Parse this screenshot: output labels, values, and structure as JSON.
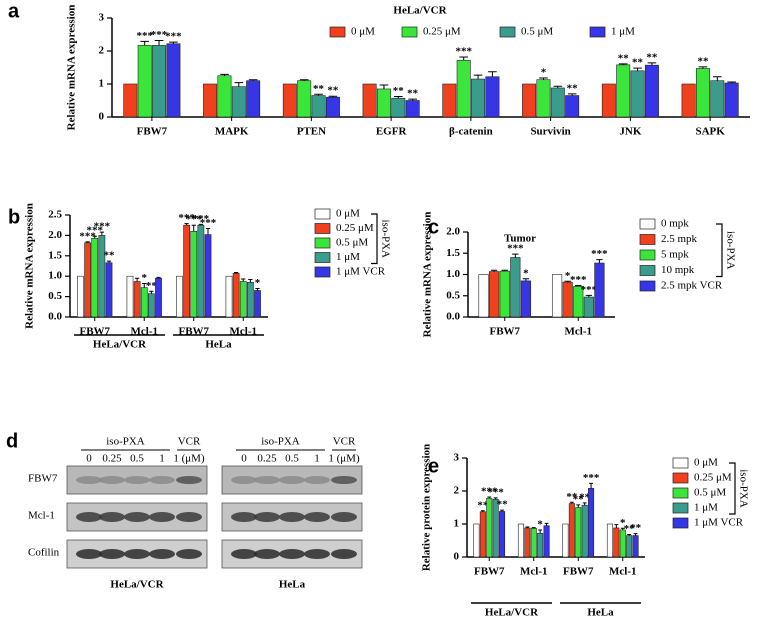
{
  "chart_data": [
    {
      "type": "bar",
      "panel": "a",
      "title": "HeLa/VCR",
      "y_label": "Relative mRNA expression",
      "categories": [
        "FBW7",
        "MAPK",
        "PTEN",
        "EGFR",
        "β-catenin",
        "Survivin",
        "JNK",
        "SAPK"
      ],
      "ylim": [
        0,
        3
      ],
      "yticks": [
        0,
        1,
        2,
        3
      ],
      "legend": "top",
      "series": [
        {
          "name": "0 μM",
          "color": "#f0401e",
          "values": [
            1,
            1,
            1,
            1,
            1,
            1,
            1,
            1
          ],
          "errors": [
            0,
            0,
            0,
            0,
            0,
            0,
            0,
            0
          ],
          "significance": [
            null,
            null,
            null,
            null,
            null,
            null,
            null,
            null
          ]
        },
        {
          "name": "0.25 μM",
          "color": "#3be63b",
          "values": [
            2.17,
            1.25,
            1.1,
            0.85,
            1.72,
            1.13,
            1.58,
            1.47
          ],
          "errors": [
            0.12,
            0.04,
            0.03,
            0.12,
            0.1,
            0.05,
            0.03,
            0.05
          ],
          "significance": [
            "***",
            null,
            null,
            null,
            "***",
            "*",
            "**",
            "**"
          ]
        },
        {
          "name": "0.5 μM",
          "color": "#3a9c8c",
          "values": [
            2.17,
            0.92,
            0.65,
            0.57,
            1.15,
            0.88,
            1.4,
            1.1
          ],
          "errors": [
            0.15,
            0.12,
            0.04,
            0.05,
            0.12,
            0.05,
            0.08,
            0.12
          ],
          "significance": [
            "***",
            null,
            "**",
            "**",
            null,
            null,
            "**",
            null
          ]
        },
        {
          "name": "1 μM",
          "color": "#3636e6",
          "values": [
            2.22,
            1.1,
            0.6,
            0.5,
            1.22,
            0.65,
            1.57,
            1.03
          ],
          "errors": [
            0.05,
            0.03,
            0.03,
            0.04,
            0.15,
            0.05,
            0.07,
            0.03
          ],
          "significance": [
            "***",
            null,
            "**",
            "**",
            null,
            "**",
            "**",
            null
          ]
        }
      ]
    },
    {
      "type": "bar",
      "panel": "b",
      "y_label": "Relative mRNA expression",
      "categories": [
        "FBW7",
        "Mcl-1",
        "FBW7",
        "Mcl-1"
      ],
      "group_labels": [
        "HeLa/VCR",
        "HeLa"
      ],
      "ylim": [
        0,
        2.5
      ],
      "yticks": [
        {
          "value": 0,
          "label": "0.0"
        },
        0.5,
        {
          "value": 1,
          "label": "1.0"
        },
        1.5,
        {
          "value": 2,
          "label": "2.0"
        },
        2.5
      ],
      "legend": "right",
      "legend_group": "iso-PXA",
      "series": [
        {
          "name": "0 μM",
          "color": "#ffffff",
          "values": [
            1,
            1,
            1,
            1
          ],
          "errors": [
            0,
            0,
            0,
            0
          ],
          "significance": [
            null,
            null,
            null,
            null
          ]
        },
        {
          "name": "0.25 μM",
          "color": "#f0401e",
          "values": [
            1.82,
            0.87,
            2.25,
            1.07
          ],
          "errors": [
            0.02,
            0.08,
            0.04,
            0.02
          ],
          "significance": [
            "***",
            null,
            "***",
            null
          ]
        },
        {
          "name": "0.5 μM",
          "color": "#3be63b",
          "values": [
            1.93,
            0.72,
            2.1,
            0.87
          ],
          "errors": [
            0.05,
            0.1,
            0.15,
            0.06
          ],
          "significance": [
            "***",
            "*",
            "***",
            null
          ]
        },
        {
          "name": "1 μM",
          "color": "#3a9c8c",
          "values": [
            2.0,
            0.57,
            2.25,
            0.85
          ],
          "errors": [
            0.08,
            0.06,
            0.02,
            0.07
          ],
          "significance": [
            "***",
            "**",
            "***",
            null
          ]
        },
        {
          "name": "1 μM VCR",
          "color": "#3636e6",
          "values": [
            1.33,
            0.95,
            2.02,
            0.65
          ],
          "errors": [
            0.04,
            0.02,
            0.15,
            0.05
          ],
          "significance": [
            "**",
            null,
            "***",
            "*"
          ]
        }
      ]
    },
    {
      "type": "bar",
      "panel": "c",
      "title": "Tumor",
      "y_label": "Relative mRNA expression",
      "categories": [
        "FBW7",
        "Mcl-1"
      ],
      "ylim": [
        0,
        2
      ],
      "yticks": [
        {
          "value": 0,
          "label": "0.0"
        },
        0.5,
        {
          "value": 1,
          "label": "1.0"
        },
        1.5,
        {
          "value": 2,
          "label": "2.0"
        }
      ],
      "legend": "right",
      "legend_group": "iso-PXA",
      "series": [
        {
          "name": "0 mpk",
          "color": "#ffffff",
          "values": [
            1,
            1
          ],
          "errors": [
            0,
            0
          ],
          "significance": [
            null,
            null
          ]
        },
        {
          "name": "2.5 mpk",
          "color": "#f0401e",
          "values": [
            1.07,
            0.82
          ],
          "errors": [
            0.03,
            0.02
          ],
          "significance": [
            null,
            "*"
          ]
        },
        {
          "name": "5 mpk",
          "color": "#3be63b",
          "values": [
            1.08,
            0.72
          ],
          "errors": [
            0.02,
            0.02
          ],
          "significance": [
            null,
            "***"
          ]
        },
        {
          "name": "10 mpk",
          "color": "#3a9c8c",
          "values": [
            1.4,
            0.47
          ],
          "errors": [
            0.08,
            0.04
          ],
          "significance": [
            "***",
            "***"
          ]
        },
        {
          "name": "2.5 mpk VCR",
          "color": "#3636e6",
          "values": [
            0.85,
            1.27
          ],
          "errors": [
            0.05,
            0.08
          ],
          "significance": [
            "*",
            "***"
          ]
        }
      ]
    },
    {
      "type": "bar",
      "panel": "e",
      "y_label": "Relative protein expression",
      "categories": [
        "FBW7",
        "Mcl-1",
        "FBW7",
        "Mcl-1"
      ],
      "group_labels": [
        "HeLa/VCR",
        "HeLa"
      ],
      "ylim": [
        0,
        3
      ],
      "yticks": [
        0,
        1,
        2,
        3
      ],
      "legend": "right",
      "legend_group": "iso-PXA",
      "series": [
        {
          "name": "0 μM",
          "color": "#ffffff",
          "values": [
            1,
            1,
            1,
            1
          ],
          "errors": [
            0,
            0,
            0,
            0
          ],
          "significance": [
            null,
            null,
            null,
            null
          ]
        },
        {
          "name": "0.25 μM",
          "color": "#f0401e",
          "values": [
            1.37,
            0.88,
            1.62,
            0.88
          ],
          "errors": [
            0.03,
            0.03,
            0.04,
            0.1
          ],
          "significance": [
            "**",
            null,
            "**",
            null
          ]
        },
        {
          "name": "0.5 μM",
          "color": "#3be63b",
          "values": [
            1.78,
            0.87,
            1.5,
            0.82
          ],
          "errors": [
            0.04,
            0.02,
            0.08,
            0.05
          ],
          "significance": [
            "***",
            null,
            "**",
            "*"
          ]
        },
        {
          "name": "1 μM",
          "color": "#3a9c8c",
          "values": [
            1.75,
            0.72,
            1.57,
            0.65
          ],
          "errors": [
            0.04,
            0.1,
            0.07,
            0.03
          ],
          "significance": [
            "***",
            "*",
            "**",
            "**"
          ]
        },
        {
          "name": "1 μM VCR",
          "color": "#3636e6",
          "values": [
            1.38,
            0.95,
            2.08,
            0.65
          ],
          "errors": [
            0.04,
            0.07,
            0.15,
            0.06
          ],
          "significance": [
            "**",
            null,
            "***",
            "**"
          ]
        }
      ]
    }
  ],
  "blot": {
    "panel": "d",
    "row_labels": [
      "FBW7",
      "Mcl-1",
      "Cofilin"
    ],
    "blots": [
      {
        "cell_line": "HeLa/VCR",
        "group_labels": [
          "iso-PXA",
          "VCR"
        ],
        "lane_labels": [
          "0",
          "0.25",
          "0.5",
          "1",
          "1 (μM)"
        ]
      },
      {
        "cell_line": "HeLa",
        "group_labels": [
          "iso-PXA",
          "VCR"
        ],
        "lane_labels": [
          "0",
          "0.25",
          "0.5",
          "1",
          "1 (μM)"
        ]
      }
    ]
  }
}
